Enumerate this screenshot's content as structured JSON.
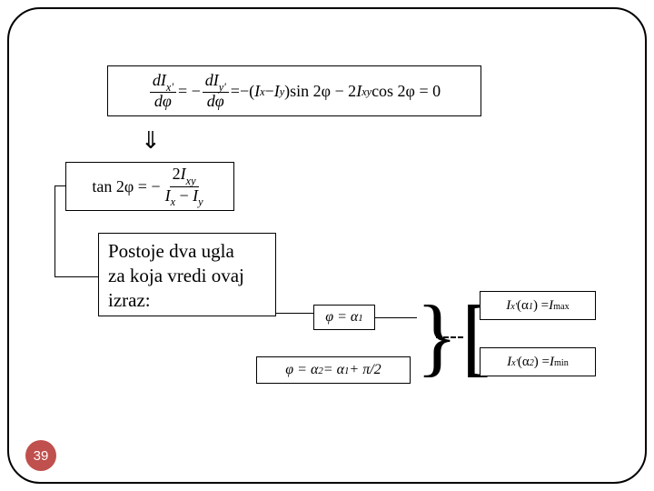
{
  "colors": {
    "border": "#000000",
    "background": "#ffffff",
    "page_num_bg": "#c0504d",
    "page_num_text": "#ffffff"
  },
  "page_number": "39",
  "arrow_glyph": "⇓",
  "eq1": {
    "lhs_num1": "dI",
    "lhs_sub1": "x'",
    "lhs_den": "dφ",
    "lhs_num2": "dI",
    "lhs_sub2": "y'",
    "rhs_open": "−(",
    "Ix": "I",
    "Ix_sub": "x",
    "minus": " − ",
    "Iy": "I",
    "Iy_sub": "y",
    "rhs_close": ")",
    "sin": "sin 2φ − 2",
    "Ixy": "I",
    "Ixy_sub": "xy",
    "cos": " cos 2φ = 0",
    "eq": " = −",
    "eq2": " = "
  },
  "eq2": {
    "tan": "tan 2φ = −",
    "num_2": "2",
    "Ixy": "I",
    "Ixy_sub": "xy",
    "Ix": "I",
    "Ix_sub": "x",
    "minus": " − ",
    "Iy": "I",
    "Iy_sub": "y"
  },
  "textbox": {
    "line1": "Postoje  dva  ugla",
    "line2": "za koja vredi ovaj",
    "line3": "izraz:"
  },
  "eq3": {
    "text": "φ = α",
    "sub": "1"
  },
  "eq4": {
    "p1": "φ = α",
    "s1": "2",
    "p2": " = α",
    "s2": "1",
    "p3": " + π/2"
  },
  "eq5": {
    "I": "I",
    "Isub": "x'",
    "open": "(α",
    "asub": "1",
    "close": ") = ",
    "Imax": "I",
    "maxsub": "max"
  },
  "eq6": {
    "I": "I",
    "Isub": "x'",
    "open": "(α",
    "asub": "2",
    "close": ") = ",
    "Imin": "I",
    "minsub": "min"
  },
  "brace_glyph": "}",
  "bracket_glyph": "["
}
